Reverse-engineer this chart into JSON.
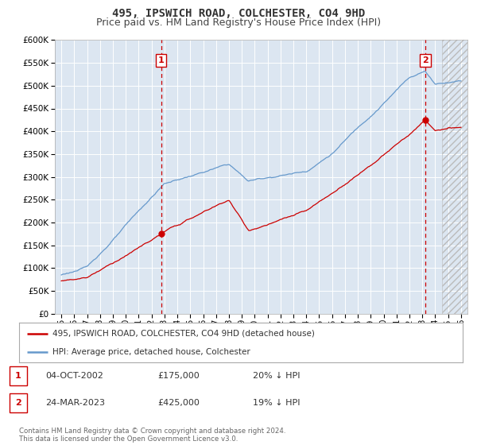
{
  "title": "495, IPSWICH ROAD, COLCHESTER, CO4 9HD",
  "subtitle": "Price paid vs. HM Land Registry's House Price Index (HPI)",
  "ylim": [
    0,
    600000
  ],
  "yticks": [
    0,
    50000,
    100000,
    150000,
    200000,
    250000,
    300000,
    350000,
    400000,
    450000,
    500000,
    550000,
    600000
  ],
  "x_start_year": 1995,
  "x_end_year": 2026,
  "plot_bg_color": "#dce6f1",
  "hpi_color": "#6699cc",
  "price_color": "#cc0000",
  "marker1_year": 2002.75,
  "marker1_price": 175000,
  "marker2_year": 2023.23,
  "marker2_price": 425000,
  "legend_label_red": "495, IPSWICH ROAD, COLCHESTER, CO4 9HD (detached house)",
  "legend_label_blue": "HPI: Average price, detached house, Colchester",
  "table_rows": [
    {
      "num": "1",
      "date": "04-OCT-2002",
      "price": "£175,000",
      "pct": "20% ↓ HPI"
    },
    {
      "num": "2",
      "date": "24-MAR-2023",
      "price": "£425,000",
      "pct": "19% ↓ HPI"
    }
  ],
  "footer": "Contains HM Land Registry data © Crown copyright and database right 2024.\nThis data is licensed under the Open Government Licence v3.0.",
  "title_fontsize": 10,
  "subtitle_fontsize": 9
}
